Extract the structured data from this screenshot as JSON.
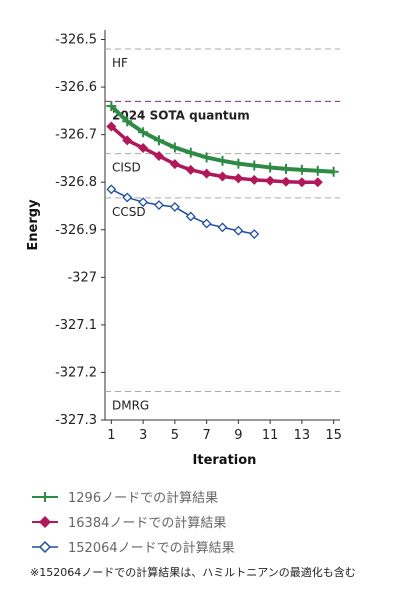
{
  "chart_data": {
    "type": "line",
    "xlabel": "Iteration",
    "ylabel": "Energy",
    "xticks": [
      1,
      3,
      5,
      7,
      9,
      11,
      13,
      15
    ],
    "xlim": [
      0.6,
      15.4
    ],
    "yticks": [
      -326.5,
      -326.6,
      -326.7,
      -326.8,
      -326.9,
      -327,
      -327.1,
      -327.2,
      -327.3
    ],
    "ylim": [
      -327.3,
      -326.48
    ],
    "reference_lines": [
      {
        "name": "HF",
        "value": -326.52,
        "color": "#aaaaaa",
        "bold": false
      },
      {
        "name": "2024 SOTA quantum",
        "value": -326.63,
        "color": "#7b2d7b",
        "bold": true
      },
      {
        "name": "CISD",
        "value": -326.74,
        "color": "#aaaaaa",
        "bold": false
      },
      {
        "name": "CCSD",
        "value": -326.833,
        "color": "#aaaaaa",
        "bold": false
      },
      {
        "name": "DMRG",
        "value": -327.24,
        "color": "#aaaaaa",
        "bold": false
      }
    ],
    "series": [
      {
        "name": "1296ノードでの計算結果",
        "color": "#2e8b45",
        "marker": "plus",
        "x": [
          1,
          2,
          3,
          4,
          5,
          6,
          7,
          8,
          9,
          10,
          11,
          12,
          13,
          14,
          15
        ],
        "y": [
          -326.64,
          -326.672,
          -326.695,
          -326.712,
          -326.727,
          -326.738,
          -326.748,
          -326.755,
          -326.761,
          -326.765,
          -326.769,
          -326.772,
          -326.774,
          -326.776,
          -326.778
        ]
      },
      {
        "name": "16384ノードでの計算結果",
        "color": "#b0185a",
        "marker": "diamond",
        "x": [
          1,
          2,
          3,
          4,
          5,
          6,
          7,
          8,
          9,
          10,
          11,
          12,
          13,
          14
        ],
        "y": [
          -326.683,
          -326.712,
          -326.728,
          -326.745,
          -326.762,
          -326.774,
          -326.782,
          -326.788,
          -326.792,
          -326.795,
          -326.797,
          -326.799,
          -326.8,
          -326.8
        ]
      },
      {
        "name": "152064ノードでの計算結果",
        "color": "#1f4fa0",
        "marker": "open-diamond",
        "x": [
          1,
          2,
          3,
          4,
          5,
          6,
          7,
          8,
          9,
          10
        ],
        "y": [
          -326.815,
          -326.832,
          -326.842,
          -326.848,
          -326.852,
          -326.872,
          -326.887,
          -326.895,
          -326.902,
          -326.909
        ]
      }
    ]
  },
  "footnote": "※152064ノードでの計算結果は、ハミルトニアンの最適化も含む"
}
